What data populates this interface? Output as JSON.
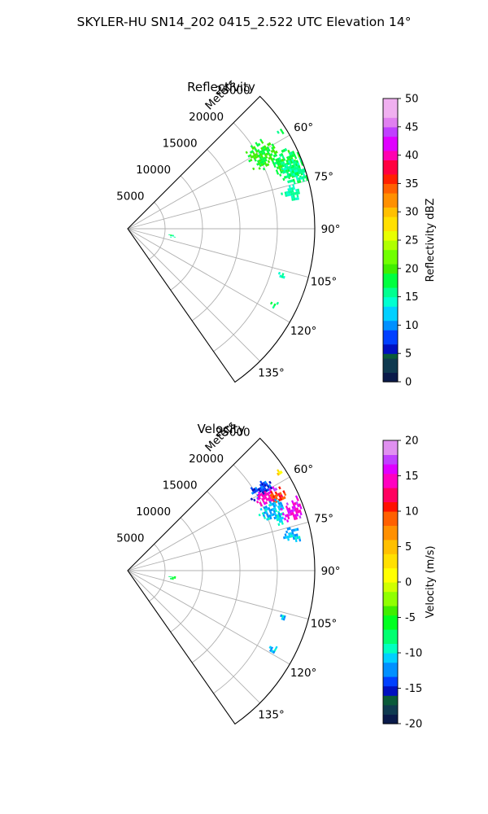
{
  "figure": {
    "title": "SKYLER-HU  SN14_202  0415_2.522 UTC Elevation 14°"
  },
  "chart_data": [
    {
      "type": "polar_sector_scan",
      "title": "Reflectivity",
      "radial_label": "Meters",
      "r_ticks": [
        5000,
        10000,
        15000,
        20000,
        25000
      ],
      "r_lim": [
        0,
        25000
      ],
      "theta_ticks_deg": [
        60,
        75,
        90,
        105,
        120,
        135
      ],
      "theta_lim_deg": [
        45,
        145
      ],
      "grid": true,
      "colorbar": {
        "label": "Reflectivity dBZ",
        "range": [
          0,
          50
        ],
        "ticks": [
          0,
          5,
          10,
          15,
          20,
          25,
          30,
          35,
          40,
          45,
          50
        ]
      },
      "echo_regions": [
        {
          "theta_deg": [
            56,
            66
          ],
          "r_m": [
            18500,
            22500
          ],
          "value": 19
        },
        {
          "theta_deg": [
            63,
            73
          ],
          "r_m": [
            21000,
            25000
          ],
          "value": 18
        },
        {
          "theta_deg": [
            67,
            75
          ],
          "r_m": [
            22000,
            25000
          ],
          "value": 16
        },
        {
          "theta_deg": [
            75,
            80
          ],
          "r_m": [
            21000,
            23500
          ],
          "value": 15
        },
        {
          "theta_deg": [
            56,
            58
          ],
          "r_m": [
            23500,
            24500
          ],
          "value": 18
        },
        {
          "theta_deg": [
            96,
            101
          ],
          "r_m": [
            5500,
            6500
          ],
          "value": 16
        },
        {
          "theta_deg": [
            105,
            107
          ],
          "r_m": [
            21000,
            22000
          ],
          "value": 15
        },
        {
          "theta_deg": [
            116,
            119
          ],
          "r_m": [
            21500,
            22500
          ],
          "value": 17
        }
      ]
    },
    {
      "type": "polar_sector_scan",
      "title": "Velocity",
      "radial_label": "Meters",
      "r_ticks": [
        5000,
        10000,
        15000,
        20000,
        25000
      ],
      "r_lim": [
        0,
        25000
      ],
      "theta_ticks_deg": [
        60,
        75,
        90,
        105,
        120,
        135
      ],
      "theta_lim_deg": [
        45,
        145
      ],
      "grid": true,
      "colorbar": {
        "label": "Velocity (m/s)",
        "range": [
          -20,
          20
        ],
        "ticks": [
          -20,
          -15,
          -10,
          -5,
          0,
          5,
          10,
          15,
          20
        ]
      },
      "echo_regions": [
        {
          "theta_deg": [
            56,
            61
          ],
          "r_m": [
            19000,
            22500
          ],
          "value": -14
        },
        {
          "theta_deg": [
            59,
            64
          ],
          "r_m": [
            19500,
            23000
          ],
          "value": 15
        },
        {
          "theta_deg": [
            61,
            65
          ],
          "r_m": [
            21000,
            23500
          ],
          "value": 10
        },
        {
          "theta_deg": [
            64,
            70
          ],
          "r_m": [
            19000,
            22500
          ],
          "value": -11
        },
        {
          "theta_deg": [
            66,
            73
          ],
          "r_m": [
            22000,
            25000
          ],
          "value": 15
        },
        {
          "theta_deg": [
            69,
            73
          ],
          "r_m": [
            20500,
            22000
          ],
          "value": -11
        },
        {
          "theta_deg": [
            75,
            80
          ],
          "r_m": [
            21000,
            23500
          ],
          "value": -11
        },
        {
          "theta_deg": [
            56,
            58
          ],
          "r_m": [
            23500,
            24500
          ],
          "value": 3
        },
        {
          "theta_deg": [
            96,
            101
          ],
          "r_m": [
            5500,
            6500
          ],
          "value": -6
        },
        {
          "theta_deg": [
            105,
            107
          ],
          "r_m": [
            21000,
            22000
          ],
          "value": -11
        },
        {
          "theta_deg": [
            116,
            119
          ],
          "r_m": [
            21500,
            22500
          ],
          "value": -11
        }
      ]
    }
  ]
}
